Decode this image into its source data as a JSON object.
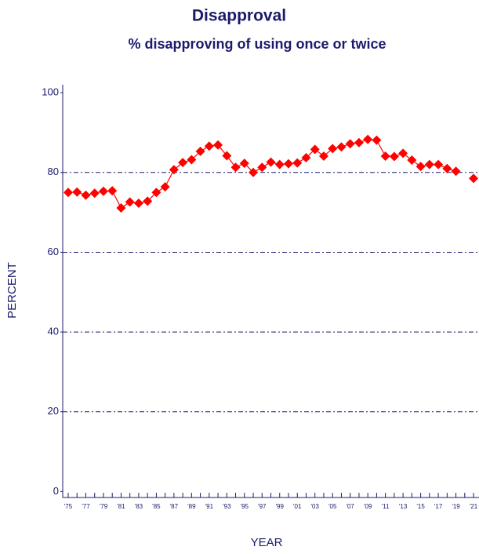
{
  "chart_data": {
    "type": "line",
    "title": "Disapproval",
    "subtitle": "% disapproving of using once or twice",
    "xlabel": "YEAR",
    "ylabel": "PERCENT",
    "categories": [
      "'75",
      null,
      "'77",
      null,
      "'79",
      null,
      "'81",
      null,
      "'83",
      null,
      "'85",
      null,
      "'87",
      null,
      "'89",
      null,
      "'91",
      null,
      "'93",
      null,
      "'95",
      null,
      "'97",
      null,
      "'99",
      null,
      "'01",
      null,
      "'03",
      null,
      "'05",
      null,
      "'07",
      null,
      "'09",
      null,
      "'11",
      null,
      "'13",
      null,
      "'15",
      null,
      "'17",
      null,
      "'19",
      null,
      "'21"
    ],
    "series": [
      {
        "name": "Disapproval",
        "color": "#ff0000",
        "values": [
          75.0,
          75.1,
          74.3,
          74.8,
          75.3,
          75.4,
          71.1,
          72.6,
          72.3,
          72.8,
          75.0,
          76.4,
          80.7,
          82.5,
          83.2,
          85.3,
          86.6,
          86.9,
          84.2,
          81.3,
          82.3,
          80.0,
          81.3,
          82.6,
          82.0,
          82.2,
          82.4,
          83.7,
          85.8,
          84.1,
          86.0,
          86.4,
          87.2,
          87.5,
          88.3,
          88.1,
          84.1,
          84.0,
          84.8,
          83.1,
          81.5,
          82.0,
          82.0,
          81.0,
          80.3,
          null,
          78.5
        ]
      }
    ],
    "ylim": [
      -1.5,
      102
    ],
    "yticks": [
      0,
      20,
      40,
      60,
      80,
      100
    ],
    "grid": true
  }
}
